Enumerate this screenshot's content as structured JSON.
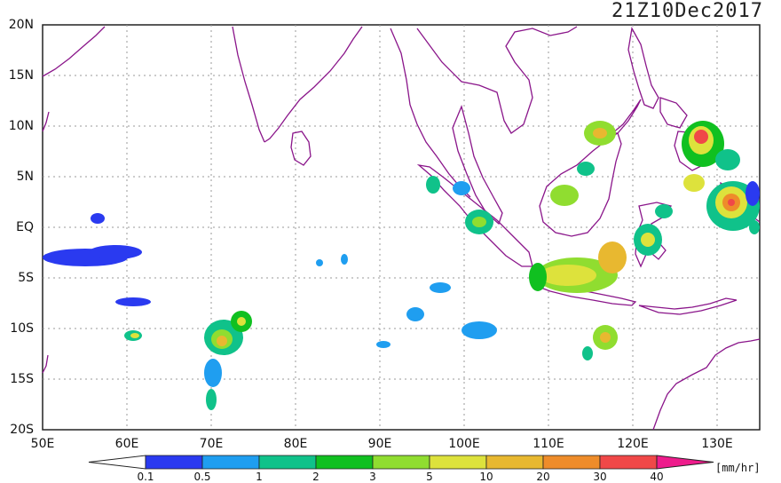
{
  "title": "21Z10Dec2017",
  "lat_labels": [
    "20N",
    "15N",
    "10N",
    "5N",
    "EQ",
    "5S",
    "10S",
    "15S",
    "20S"
  ],
  "lon_labels": [
    "50E",
    "60E",
    "70E",
    "80E",
    "90E",
    "100E",
    "110E",
    "120E",
    "130E"
  ],
  "colorbar": {
    "unit": "[mm/hr]",
    "tick_labels": [
      "0.1",
      "0.5",
      "1",
      "2",
      "3",
      "5",
      "10",
      "20",
      "30",
      "40"
    ],
    "colors": [
      "#2a3af0",
      "#1f9ef0",
      "#10c28a",
      "#10c020",
      "#90dd30",
      "#dde23c",
      "#e8b830",
      "#ee8c2a",
      "#f04848",
      "#ee1c8c"
    ]
  },
  "coastline_color": "#8a158a",
  "grid": true
}
